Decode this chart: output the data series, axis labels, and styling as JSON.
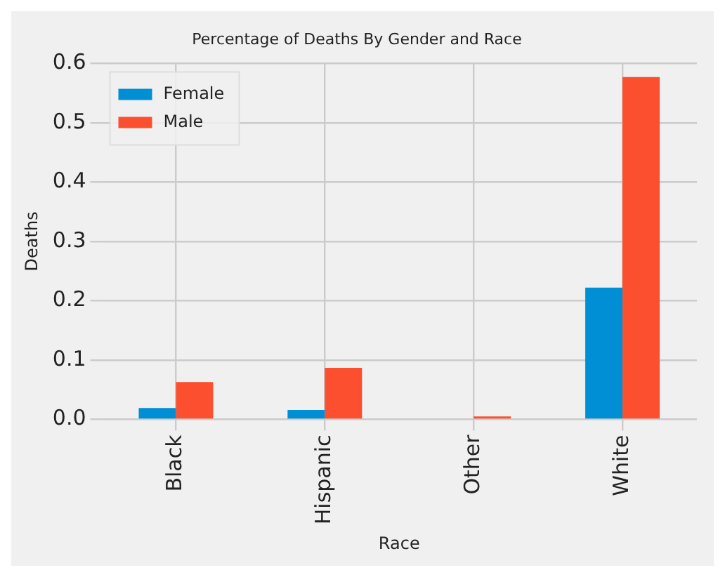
{
  "chart_data": {
    "type": "bar",
    "title": "Percentage of Deaths By Gender and Race",
    "xlabel": "Race",
    "ylabel": "Deaths",
    "categories": [
      "Black",
      "Hispanic",
      "Other",
      "White"
    ],
    "series": [
      {
        "name": "Female",
        "color": "#008fd5",
        "values": [
          0.019,
          0.016,
          0,
          0.222
        ]
      },
      {
        "name": "Male",
        "color": "#fc4f30",
        "values": [
          0.063,
          0.087,
          0.005,
          0.577
        ]
      }
    ],
    "ylim": [
      0,
      0.6
    ],
    "yticks": [
      {
        "value": 0,
        "label": "0.0"
      },
      0.1,
      0.2,
      0.3,
      0.4,
      0.5,
      0.6
    ],
    "grid": true,
    "legend": "top left"
  }
}
